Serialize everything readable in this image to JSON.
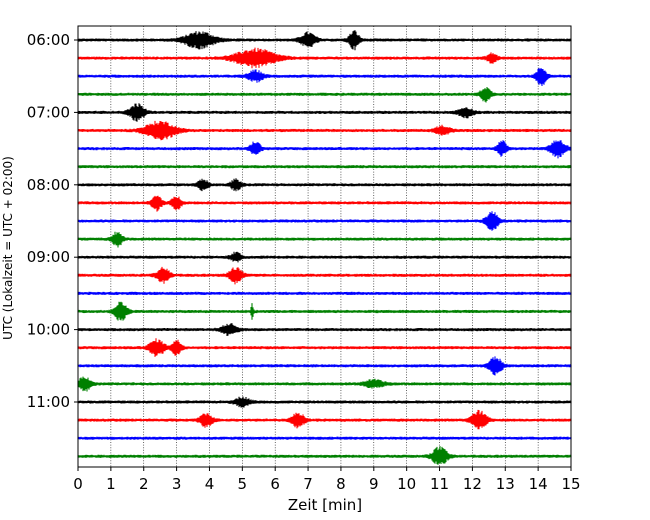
{
  "chart_data": {
    "type": "line",
    "title": "",
    "xlabel": "Zeit  [min]",
    "ylabel": "UTC (Lokalzeit = UTC + 02:00)",
    "xlim": [
      0,
      15
    ],
    "x_ticks": [
      "0",
      "1",
      "2",
      "3",
      "4",
      "5",
      "6",
      "7",
      "8",
      "9",
      "10",
      "11",
      "12",
      "13",
      "14",
      "15"
    ],
    "y_ticks": [
      "06:00",
      "07:00",
      "08:00",
      "09:00",
      "10:00",
      "11:00"
    ],
    "grid": "vertical dotted at each minute",
    "colors": [
      "#000000",
      "#ff0000",
      "#0000ff",
      "#008000"
    ],
    "traces": [
      {
        "start": "06:00",
        "events": [
          [
            3.7,
            0.6,
            0.9
          ],
          [
            7.0,
            0.3,
            0.8
          ],
          [
            8.4,
            0.2,
            1.0
          ]
        ]
      },
      {
        "start": "06:15",
        "events": [
          [
            5.4,
            0.8,
            1.0
          ],
          [
            12.6,
            0.2,
            0.5
          ]
        ]
      },
      {
        "start": "06:30",
        "events": [
          [
            5.4,
            0.3,
            0.6
          ],
          [
            14.1,
            0.2,
            1.0
          ]
        ]
      },
      {
        "start": "06:45",
        "events": [
          [
            12.4,
            0.2,
            0.8
          ]
        ]
      },
      {
        "start": "07:00",
        "events": [
          [
            1.8,
            0.3,
            0.9
          ],
          [
            11.8,
            0.3,
            0.5
          ]
        ]
      },
      {
        "start": "07:15",
        "events": [
          [
            2.5,
            0.6,
            1.0
          ],
          [
            11.1,
            0.3,
            0.5
          ]
        ]
      },
      {
        "start": "07:30",
        "events": [
          [
            5.4,
            0.2,
            0.8
          ],
          [
            12.9,
            0.2,
            0.8
          ],
          [
            14.6,
            0.3,
            1.0
          ]
        ]
      },
      {
        "start": "07:45",
        "events": []
      },
      {
        "start": "08:00",
        "events": [
          [
            3.8,
            0.2,
            0.6
          ],
          [
            4.8,
            0.2,
            0.6
          ]
        ]
      },
      {
        "start": "08:15",
        "events": [
          [
            2.4,
            0.2,
            0.8
          ],
          [
            3.0,
            0.2,
            0.7
          ]
        ]
      },
      {
        "start": "08:30",
        "events": [
          [
            12.6,
            0.25,
            1.0
          ]
        ]
      },
      {
        "start": "08:45",
        "events": [
          [
            1.2,
            0.2,
            0.8
          ]
        ]
      },
      {
        "start": "09:00",
        "events": [
          [
            4.8,
            0.2,
            0.5
          ]
        ]
      },
      {
        "start": "09:15",
        "events": [
          [
            2.6,
            0.25,
            0.8
          ],
          [
            4.8,
            0.25,
            0.9
          ]
        ]
      },
      {
        "start": "09:30",
        "events": []
      },
      {
        "start": "09:45",
        "events": [
          [
            1.3,
            0.25,
            1.0
          ],
          [
            5.3,
            0.05,
            0.8
          ]
        ]
      },
      {
        "start": "10:00",
        "events": [
          [
            4.6,
            0.3,
            0.6
          ]
        ]
      },
      {
        "start": "10:15",
        "events": [
          [
            2.4,
            0.3,
            0.9
          ],
          [
            3.0,
            0.2,
            0.8
          ]
        ]
      },
      {
        "start": "10:30",
        "events": [
          [
            12.7,
            0.25,
            1.0
          ]
        ]
      },
      {
        "start": "10:45",
        "events": [
          [
            0.2,
            0.25,
            0.8
          ],
          [
            9.0,
            0.4,
            0.4
          ]
        ]
      },
      {
        "start": "11:00",
        "events": [
          [
            5.0,
            0.3,
            0.5
          ]
        ]
      },
      {
        "start": "11:15",
        "events": [
          [
            3.9,
            0.25,
            0.7
          ],
          [
            6.7,
            0.25,
            0.8
          ],
          [
            12.2,
            0.3,
            1.0
          ]
        ]
      },
      {
        "start": "11:30",
        "events": []
      },
      {
        "start": "11:45",
        "events": [
          [
            11.0,
            0.3,
            1.0
          ]
        ]
      }
    ]
  }
}
